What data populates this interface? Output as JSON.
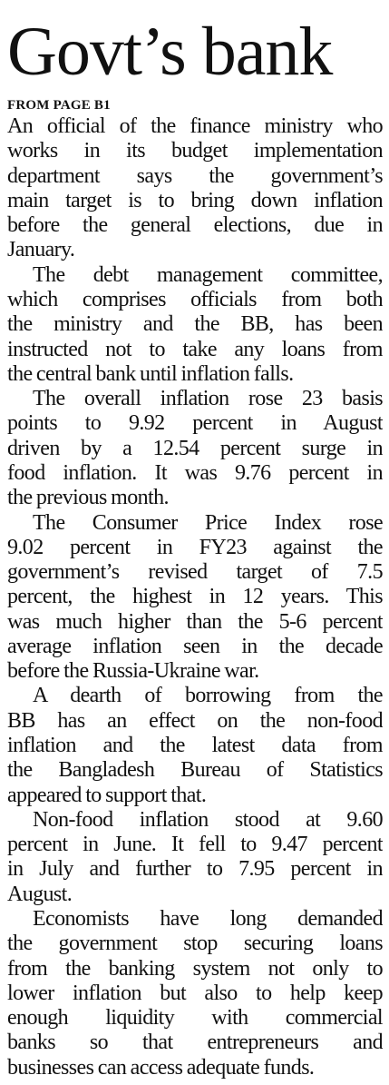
{
  "header": {
    "title": "Govt’s bank",
    "kicker": "FROM PAGE B1"
  },
  "paragraphs": [
    {
      "lines": [
        "An official of the finance ministry who",
        "works in its budget implementation",
        "department says the government’s",
        "main target is to bring down inflation",
        "before the general elections, due in",
        "January."
      ]
    },
    {
      "lines": [
        "The debt management committee,",
        "which comprises officials from both",
        "the ministry and the BB, has been",
        "instructed not to take any loans from",
        "the central bank until inflation falls."
      ]
    },
    {
      "lines": [
        "The overall inflation rose 23 basis",
        "points to 9.92 percent in August",
        "driven by a 12.54 percent surge in",
        "food inflation. It was 9.76 percent in",
        "the previous month."
      ]
    },
    {
      "lines": [
        "The Consumer Price Index rose",
        "9.02 percent in FY23 against the",
        "government’s revised target of 7.5",
        "percent, the highest in 12 years. This",
        "was much higher than the 5-6 percent",
        "average inflation seen in the decade",
        "before the Russia-Ukraine war."
      ]
    },
    {
      "lines": [
        "A dearth of borrowing from the",
        "BB has an effect on the non-food",
        "inflation and the latest data from",
        "the Bangladesh Bureau of Statistics",
        "appeared to support that."
      ]
    },
    {
      "lines": [
        "Non-food inflation stood at 9.60",
        "percent in June. It fell to 9.47 percent",
        "in July and further to 7.95 percent in",
        "August."
      ]
    },
    {
      "lines": [
        "Economists have long demanded",
        "the government stop securing loans",
        "from the banking system not only to",
        "lower inflation but also to help keep",
        "enough liquidity with commercial",
        "banks so that entrepreneurs and",
        "businesses can access adequate funds."
      ]
    }
  ]
}
